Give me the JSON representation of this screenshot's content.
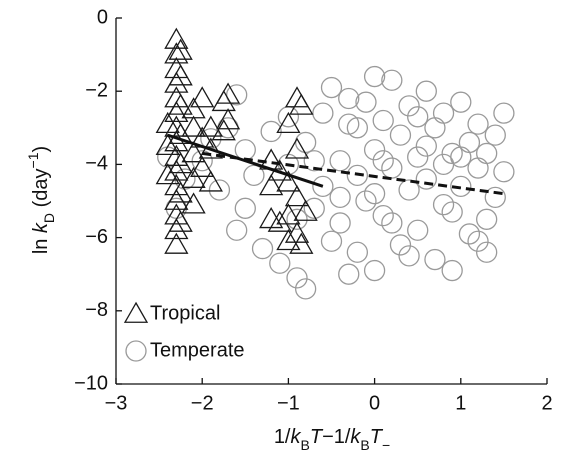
{
  "chart_data": {
    "type": "scatter",
    "xlabel": [
      "1/",
      "k",
      "B",
      "T",
      "−1/",
      "k",
      "B",
      "T",
      "−"
    ],
    "ylabel": [
      "ln ",
      "k",
      "D",
      " (day",
      "−1",
      ")"
    ],
    "xlim": [
      -3,
      2
    ],
    "ylim": [
      -10,
      0
    ],
    "xticks": [
      {
        "value": -3,
        "label": "−3"
      },
      {
        "value": -2,
        "label": "−2"
      },
      {
        "value": -1,
        "label": "−1"
      },
      0,
      1,
      2
    ],
    "yticks": [
      {
        "value": -10,
        "label": "−10"
      },
      {
        "value": -8,
        "label": "−8"
      },
      {
        "value": -6,
        "label": "−6"
      },
      {
        "value": -4,
        "label": "−4"
      },
      {
        "value": -2,
        "label": "−2"
      },
      0
    ],
    "legend": "lower left",
    "series": [
      {
        "name": "Temperate",
        "color": "#9a9a9a",
        "marker": "circle",
        "x": [
          -2.4,
          -2.3,
          -2.2,
          -2.0,
          -1.9,
          -1.8,
          -1.6,
          -1.6,
          -1.5,
          -1.4,
          -1.3,
          -1.2,
          -1.1,
          -1.0,
          -0.9,
          -0.8,
          -0.8,
          -0.7,
          -0.6,
          -0.6,
          -0.5,
          -0.5,
          -0.4,
          -0.4,
          -0.3,
          -0.3,
          -0.2,
          -0.2,
          -0.1,
          -0.1,
          0,
          0,
          0,
          0,
          0.1,
          0.1,
          0.2,
          0.2,
          0.3,
          0.3,
          0.4,
          0.4,
          0.5,
          0.5,
          0.6,
          0.6,
          0.7,
          0.7,
          0.8,
          0.8,
          0.9,
          0.9,
          1.0,
          1.0,
          1.1,
          1.1,
          1.2,
          1.2,
          1.3,
          1.3,
          1.4,
          1.4,
          1.5,
          1.5,
          -1.5,
          -1.0,
          -0.7,
          -0.2,
          0.2,
          0.6,
          1.0,
          -0.9,
          -0.4,
          0.4,
          0.8,
          1.2,
          -1.7,
          -0.3,
          0.1,
          0.5,
          0.9,
          1.3
        ],
        "values": [
          -3.8,
          -5.2,
          -4.4,
          -3.9,
          -3.3,
          -4.7,
          -2.1,
          -5.8,
          -3.6,
          -4.3,
          -6.3,
          -3.1,
          -6.7,
          -4.0,
          -7.1,
          -7.4,
          -3.4,
          -5.2,
          -2.6,
          -4.6,
          -1.9,
          -6.1,
          -3.9,
          -5.6,
          -2.9,
          -7.0,
          -4.3,
          -6.4,
          -2.3,
          -5.0,
          -1.6,
          -3.6,
          -4.8,
          -6.9,
          -2.8,
          -5.4,
          -1.7,
          -4.1,
          -3.2,
          -6.2,
          -2.4,
          -4.7,
          -3.8,
          -5.8,
          -2.0,
          -4.4,
          -3.0,
          -6.6,
          -2.6,
          -5.1,
          -3.7,
          -6.9,
          -2.3,
          -4.6,
          -3.4,
          -5.9,
          -2.9,
          -4.1,
          -5.5,
          -6.4,
          -3.2,
          -4.9,
          -2.6,
          -4.2,
          -5.2,
          -2.7,
          -3.9,
          -3.0,
          -5.6,
          -3.5,
          -3.8,
          -5.5,
          -4.9,
          -6.5,
          -4.0,
          -6.1,
          -3.0,
          -2.2,
          -3.9,
          -2.7,
          -5.3,
          -3.7
        ]
      },
      {
        "name": "Tropical",
        "color": "#1a1a1a",
        "marker": "triangle",
        "x": [
          -2.3,
          -2.3,
          -2.3,
          -2.3,
          -2.3,
          -2.3,
          -2.3,
          -2.3,
          -2.3,
          -2.3,
          -2.3,
          -2.3,
          -2.3,
          -2.3,
          -2.3,
          -2.25,
          -2.25,
          -2.25,
          -2.25,
          -2.25,
          -2.25,
          -2.25,
          -2.4,
          -2.4,
          -2.4,
          -2.1,
          -2.1,
          -2.1,
          -2.1,
          -2.1,
          -2.0,
          -2.0,
          -2.0,
          -1.9,
          -1.9,
          -1.9,
          -1.75,
          -1.75,
          -1.7,
          -1.7,
          -1.2,
          -1.2,
          -1.2,
          -1.1,
          -1.1,
          -1.0,
          -1.0,
          -1.0,
          -1.0,
          -0.9,
          -0.9,
          -0.9,
          -0.9,
          -0.85,
          -0.85,
          -0.8
        ],
        "values": [
          -0.6,
          -1.0,
          -1.4,
          -1.8,
          -2.2,
          -2.6,
          -3.0,
          -3.4,
          -3.8,
          -4.2,
          -4.6,
          -5.0,
          -5.4,
          -5.8,
          -6.2,
          -0.9,
          -1.6,
          -2.4,
          -3.2,
          -4.0,
          -4.8,
          -5.6,
          -2.9,
          -3.5,
          -4.3,
          -2.5,
          -3.0,
          -3.7,
          -4.4,
          -5.1,
          -2.2,
          -3.3,
          -4.1,
          -3.0,
          -3.6,
          -4.5,
          -2.3,
          -3.1,
          -2.1,
          -2.8,
          -3.9,
          -4.6,
          -5.5,
          -4.2,
          -5.6,
          -2.9,
          -4.5,
          -5.4,
          -6.1,
          -2.2,
          -3.6,
          -4.9,
          -5.9,
          -2.4,
          -6.2,
          -5.3
        ]
      }
    ],
    "trend_lines": [
      {
        "x": [
          -2.4,
          -0.6
        ],
        "y": [
          -3.2,
          -4.6
        ],
        "color": "#111",
        "dash": "solid"
      },
      {
        "x": [
          -2.0,
          1.5
        ],
        "y": [
          -3.7,
          -4.8
        ],
        "color": "#111",
        "dash": "dashed"
      }
    ]
  }
}
